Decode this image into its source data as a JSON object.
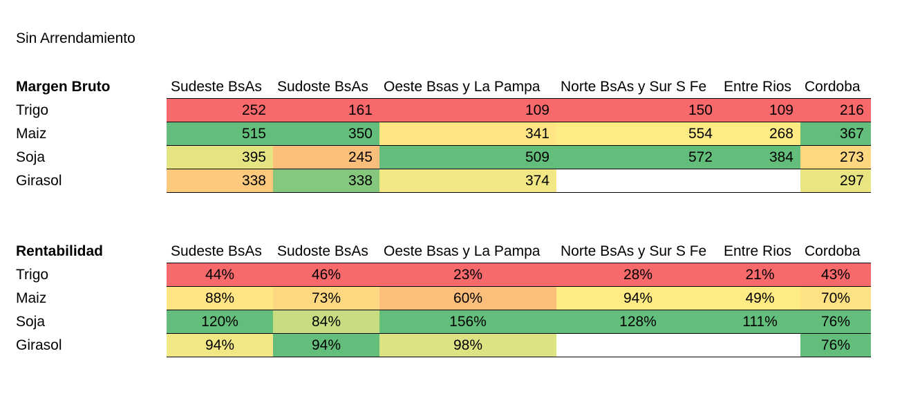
{
  "title": "Sin Arrendamiento",
  "columns": [
    "Sudeste BsAs",
    "Sudoste BsAs",
    "Oeste Bsas y La Pampa",
    "Norte BsAs y Sur  S Fe",
    "Entre Rios",
    "Cordoba"
  ],
  "colors": {
    "red": "#f8696b",
    "green": "#63be7b",
    "light_green": "#85c87d",
    "yellow": "#ffeb84",
    "yellow_green": "#e5e483",
    "pale_green": "#c9dc81",
    "orange": "#fcbf7b",
    "light_orange": "#fdc97d",
    "peach": "#fcc17c",
    "empty": "#ffffff"
  },
  "margen_bruto": {
    "heading": "Margen Bruto",
    "rows": [
      {
        "label": "Trigo",
        "values": [
          "252",
          "161",
          "109",
          "150",
          "109",
          "216"
        ],
        "colors": [
          "#f8696b",
          "#f8696b",
          "#f8696b",
          "#f8696b",
          "#f8696b",
          "#f8696b"
        ]
      },
      {
        "label": "Maiz",
        "values": [
          "515",
          "350",
          "341",
          "554",
          "268",
          "367"
        ],
        "colors": [
          "#63be7b",
          "#63be7b",
          "#ffe584",
          "#ffeb84",
          "#ffeb84",
          "#63be7b"
        ]
      },
      {
        "label": "Soja",
        "values": [
          "395",
          "245",
          "509",
          "572",
          "384",
          "273"
        ],
        "colors": [
          "#e5e483",
          "#fcbf7b",
          "#63be7b",
          "#63be7b",
          "#63be7b",
          "#fed880"
        ]
      },
      {
        "label": "Girasol",
        "values": [
          "338",
          "338",
          "374",
          "",
          "",
          "297"
        ],
        "colors": [
          "#fdc97d",
          "#85c87d",
          "#f1e784",
          "#ffffff",
          "#ffffff",
          "#e9e583"
        ]
      }
    ]
  },
  "rentabilidad": {
    "heading": "Rentabilidad",
    "rows": [
      {
        "label": "Trigo",
        "values": [
          "44%",
          "46%",
          "23%",
          "28%",
          "21%",
          "43%"
        ],
        "colors": [
          "#f8696b",
          "#f8696b",
          "#f8696b",
          "#f8696b",
          "#f8696b",
          "#f8696b"
        ]
      },
      {
        "label": "Maiz",
        "values": [
          "88%",
          "73%",
          "60%",
          "94%",
          "49%",
          "70%"
        ],
        "colors": [
          "#ffe584",
          "#fed880",
          "#fcbf7b",
          "#ffeb84",
          "#ffeb84",
          "#fee182"
        ]
      },
      {
        "label": "Soja",
        "values": [
          "120%",
          "84%",
          "156%",
          "128%",
          "111%",
          "76%"
        ],
        "colors": [
          "#63be7b",
          "#c9dc81",
          "#63be7b",
          "#63be7b",
          "#63be7b",
          "#63be7b"
        ]
      },
      {
        "label": "Girasol",
        "values": [
          "94%",
          "94%",
          "98%",
          "",
          "",
          "76%"
        ],
        "colors": [
          "#f1e784",
          "#63be7b",
          "#dde283",
          "#ffffff",
          "#ffffff",
          "#63be7b"
        ]
      }
    ]
  }
}
